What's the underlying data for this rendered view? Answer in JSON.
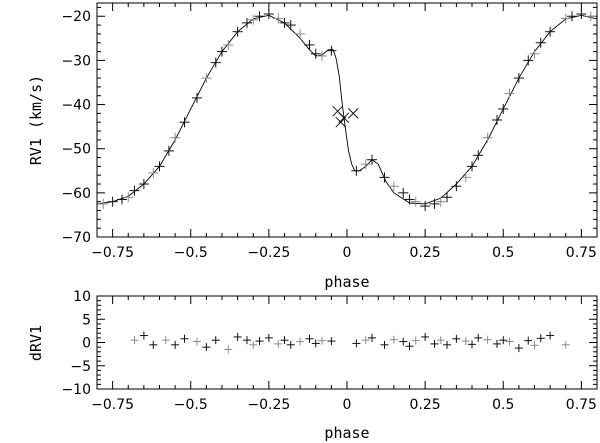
{
  "chart_data": [
    {
      "type": "scatter",
      "panel": "top",
      "xlabel": "phase",
      "ylabel": "RV1 (km/s)",
      "xlim": [
        -0.8,
        0.8
      ],
      "ylim": [
        -70,
        -17
      ],
      "xticks": [
        -0.75,
        -0.5,
        -0.25,
        0,
        0.25,
        0.5,
        0.75
      ],
      "xtick_labels": [
        "−0.75",
        "−0.5",
        "−0.25",
        "0",
        "0.25",
        "0.5",
        "0.75"
      ],
      "yticks": [
        -70,
        -60,
        -50,
        -40,
        -30,
        -20
      ],
      "ytick_labels": [
        "−70",
        "−60",
        "−50",
        "−40",
        "−30",
        "−20"
      ],
      "grid": false,
      "model_curve": {
        "x": [
          -0.8,
          -0.75,
          -0.7,
          -0.65,
          -0.6,
          -0.55,
          -0.5,
          -0.45,
          -0.4,
          -0.35,
          -0.3,
          -0.25,
          -0.2,
          -0.15,
          -0.12,
          -0.1,
          -0.08,
          -0.06,
          -0.045,
          -0.035,
          -0.025,
          -0.015,
          -0.005,
          0.0,
          0.005,
          0.015,
          0.025,
          0.04,
          0.06,
          0.08,
          0.1,
          0.125,
          0.15,
          0.2,
          0.25,
          0.3,
          0.35,
          0.4,
          0.45,
          0.5,
          0.55,
          0.6,
          0.65,
          0.7,
          0.75,
          0.8
        ],
        "y": [
          -62.5,
          -62.0,
          -60.8,
          -58.0,
          -54.0,
          -48.0,
          -41.0,
          -34.0,
          -28.0,
          -23.5,
          -20.6,
          -19.8,
          -21.5,
          -25.0,
          -27.6,
          -29.0,
          -28.8,
          -27.6,
          -27.5,
          -29.5,
          -33.5,
          -40.0,
          -45.5,
          -48.0,
          -50.5,
          -53.5,
          -55.0,
          -55.0,
          -54.0,
          -52.5,
          -53.5,
          -57.5,
          -60.0,
          -62.3,
          -62.5,
          -61.2,
          -58.0,
          -54.0,
          -48.0,
          -41.0,
          -34.0,
          -28.0,
          -23.5,
          -20.6,
          -19.8,
          -20.6
        ]
      },
      "observations": {
        "x": [
          -0.78,
          -0.75,
          -0.72,
          -0.7,
          -0.68,
          -0.65,
          -0.62,
          -0.6,
          -0.57,
          -0.55,
          -0.52,
          -0.48,
          -0.45,
          -0.42,
          -0.4,
          -0.38,
          -0.35,
          -0.32,
          -0.3,
          -0.28,
          -0.25,
          -0.22,
          -0.2,
          -0.18,
          -0.15,
          -0.12,
          -0.1,
          -0.08,
          -0.05,
          0.03,
          0.06,
          0.08,
          0.12,
          0.15,
          0.18,
          0.2,
          0.22,
          0.25,
          0.28,
          0.3,
          0.32,
          0.35,
          0.38,
          0.4,
          0.42,
          0.45,
          0.48,
          0.5,
          0.52,
          0.55,
          0.58,
          0.6,
          0.62,
          0.65,
          0.7,
          0.72,
          0.75,
          0.78
        ],
        "y": [
          -62.5,
          -62.0,
          -61.5,
          -61.0,
          -59.5,
          -58.0,
          -55.5,
          -54.0,
          -50.5,
          -47.5,
          -44.0,
          -38.5,
          -34.0,
          -30.5,
          -28.0,
          -26.5,
          -23.5,
          -21.5,
          -20.8,
          -20.0,
          -19.5,
          -20.5,
          -21.5,
          -22.0,
          -24.0,
          -26.5,
          -28.5,
          -29.0,
          -27.8,
          -55.0,
          -53.5,
          -52.5,
          -56.5,
          -58.5,
          -60.0,
          -61.5,
          -62.0,
          -63.0,
          -62.5,
          -62.0,
          -61.0,
          -58.5,
          -56.5,
          -54.0,
          -51.5,
          -47.5,
          -43.5,
          -41.0,
          -37.5,
          -34.0,
          -30.0,
          -28.5,
          -26.0,
          -23.5,
          -20.5,
          -20.0,
          -19.5,
          -20.0
        ]
      },
      "eclipse_points": {
        "marker": "x",
        "x": [
          -0.03,
          -0.02,
          -0.01,
          0.02
        ],
        "y": [
          -41.5,
          -44.0,
          -43.0,
          -42.0
        ]
      }
    },
    {
      "type": "scatter",
      "panel": "bottom",
      "xlabel": "phase",
      "ylabel": "dRV1",
      "xlim": [
        -0.8,
        0.8
      ],
      "ylim": [
        -10,
        10
      ],
      "xticks": [
        -0.75,
        -0.5,
        -0.25,
        0,
        0.25,
        0.5,
        0.75
      ],
      "xtick_labels": [
        "−0.75",
        "−0.5",
        "−0.25",
        "0",
        "0.25",
        "0.5",
        "0.75"
      ],
      "yticks": [
        -10,
        -5,
        0,
        5,
        10
      ],
      "ytick_labels": [
        "−10",
        "−5",
        "0",
        "5",
        "10"
      ],
      "grid": false,
      "residuals": {
        "x": [
          -0.68,
          -0.65,
          -0.62,
          -0.58,
          -0.55,
          -0.52,
          -0.48,
          -0.45,
          -0.42,
          -0.38,
          -0.35,
          -0.32,
          -0.3,
          -0.28,
          -0.25,
          -0.22,
          -0.2,
          -0.18,
          -0.15,
          -0.12,
          -0.1,
          -0.08,
          -0.05,
          0.03,
          0.06,
          0.08,
          0.12,
          0.15,
          0.18,
          0.2,
          0.22,
          0.25,
          0.28,
          0.3,
          0.32,
          0.35,
          0.38,
          0.4,
          0.42,
          0.45,
          0.48,
          0.5,
          0.52,
          0.55,
          0.58,
          0.6,
          0.62,
          0.65,
          0.7
        ],
        "y": [
          0.5,
          1.5,
          -0.5,
          0.5,
          -0.5,
          0.8,
          0.2,
          -1.0,
          0.5,
          -1.5,
          1.2,
          0.5,
          -0.5,
          0.3,
          1.0,
          -0.3,
          0.5,
          -0.5,
          0.2,
          0.8,
          -0.2,
          0.4,
          0.3,
          -0.2,
          0.5,
          1.0,
          -0.5,
          0.6,
          0.2,
          -0.8,
          0.4,
          1.2,
          -0.3,
          0.5,
          -0.5,
          0.8,
          0.3,
          -0.4,
          1.0,
          0.6,
          -0.3,
          0.5,
          0.2,
          -1.2,
          0.4,
          -0.6,
          0.9,
          1.5,
          -0.5
        ]
      }
    }
  ]
}
